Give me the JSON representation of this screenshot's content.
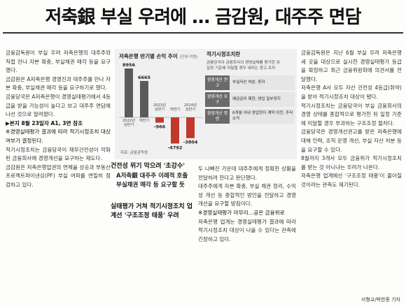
{
  "headline": "저축銀 부실 우려에 … 금감원, 대주주 면담",
  "col1": {
    "paragraphs": [
      "금감원은 A저축은행 경영진과 대주주를 만나 자본 확충, 부실채권 매각 등을 요구하기로 했다.",
      "금융당국은 A저축은행이 경영실태평가에서 4등급을 받을 가능성이 높다고 보고 대주주 면담에 나선 것으로 알려졌다.",
      "금융감독원이 부실 우려 저축은행의 대주주와 직접 만나 자본 확충, 부실채권 매각 등을 요구했다."
    ],
    "note": "▶본지 8월 23일자 A1, 3면 참조",
    "subhead": "※경영실태평가 결과에 따라 적기시정조치 대상 여부가 결정된다.",
    "paragraphs2": [
      "적기시정조치는 금융당국이 재무건전성이 악화된 금융회사에 경영개선을 요구하는 제도다.",
      "금감원은 저축은행업권의 연체율 상승과 부동산 프로젝트파이낸싱(PF) 부실 여파를 면밀히 점검하고 있다."
    ]
  },
  "chart_data": {
    "type": "bar",
    "title": "저축은행 반기별 손익 추이",
    "unit": "(단위:억원)",
    "categories": [
      "2022년 상반기",
      "하반기",
      "2023년 상반기",
      "하반기",
      "2024년 상반기"
    ],
    "values": [
      8956,
      6665,
      -966,
      -4792,
      -3804
    ],
    "value_labels": [
      "8956",
      "6665",
      "-966",
      "-4792",
      "-3804"
    ],
    "colors": {
      "positive": "#5a5a5a",
      "negative": "#c0392b"
    },
    "source": "자료: 금융감독원"
  },
  "side_panel": {
    "title": "적기시정조치란",
    "description": "금융당국이 금융회사의 경영실태를 평가한 뒤 일정 기준에 미달할 경우 내리는 경고 조치",
    "rows": [
      {
        "label": "경영개선 권고",
        "value": "부실자산 처분, 증자"
      },
      {
        "label": "경영개선 요구",
        "value": "예금금리 제한, 영업 일부정지"
      },
      {
        "label": "경영개선 명령",
        "value": "6개월 이내 영업정지 계약 이전, 주식 소각"
      }
    ]
  },
  "subheads": {
    "first": "건전성 위기 막으려 '초강수'",
    "second": "실태평가 거쳐 적기시정조치 업계선 '구조조정 태풍' 우려"
  },
  "lede": "A저축銀 대주주 이례적 호출 부실채권 매각 등 요구할 듯",
  "col3": {
    "paragraphs": [
      "두 나빠진 가운데 대주주에게 정확한 상황을 전달하려 한다고 판단했다.",
      "대주주에게 자본 확충, 부실 채권 정리, 수익성 개선 등 종합적인 방안을 전달하고 경영 개선을 요구할 방침이다.",
      "※경영실태평가 마무리…공은 금융위로",
      "저축은행 업계는 경영실태평가 결과에 따라 적기시정조치 대상이 나올 수 있다는 관측에 긴장하고 있다."
    ]
  },
  "col4": {
    "paragraphs": [
      "금융감독원은 지난 6월 부실 우려 저축은행 세 곳을 대상으로 실시한 경영실태평가 등급을 확정하고 최근 금융위원회에 의견서를 전달했다.",
      "저축은행 A사 모두 자산 건전성 4등급(취약)을 받아 적기시정조치 대상이 됐다.",
      "적기시정조치는 금융당국이 부실 금융회사의 경영 상태를 종합적으로 평가한 뒤 일정 기준에 미달할 경우 부과하는 구조조정 절차다.",
      "금융당국은 경영개선권고를 받은 저축은행에 대해 인력, 조직 운영 개선, 부실 자산 처분 등을 요구할 수 있다.",
      "8월까지 3개사 모두 금융위가 적기시정조치를 받는 것 아니냐는 우려가 나온다.",
      "저축은행 업계에선 '구조조정 태풍'이 몰아칠 것이라는 관측도 제기된다."
    ]
  },
  "credit": "서형교/박한종 기자"
}
